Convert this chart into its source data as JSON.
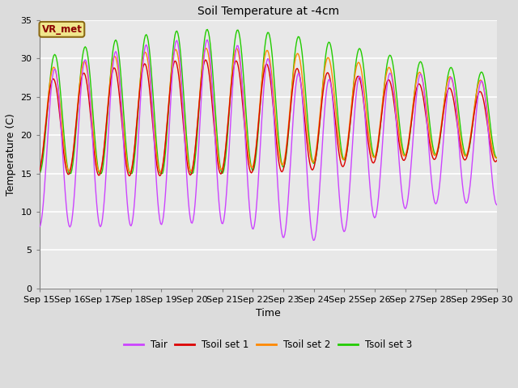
{
  "title": "Soil Temperature at -4cm",
  "xlabel": "Time",
  "ylabel": "Temperature (C)",
  "ylim": [
    0,
    35
  ],
  "xlim": [
    0,
    15
  ],
  "bg_color": "#dcdcdc",
  "plot_bg_color": "#e8e8e8",
  "annotation_text": "VR_met",
  "annotation_bg": "#f0e68c",
  "annotation_fg": "#8b0000",
  "annotation_border": "#8b6914",
  "tick_labels": [
    "Sep 15",
    "Sep 16",
    "Sep 17",
    "Sep 18",
    "Sep 19",
    "Sep 20",
    "Sep 21",
    "Sep 22",
    "Sep 23",
    "Sep 24",
    "Sep 25",
    "Sep 26",
    "Sep 27",
    "Sep 28",
    "Sep 29",
    "Sep 30"
  ],
  "legend_labels": [
    "Tair",
    "Tsoil set 1",
    "Tsoil set 2",
    "Tsoil set 3"
  ],
  "line_colors": [
    "#cc44ff",
    "#dd0000",
    "#ff8800",
    "#22cc00"
  ],
  "n_points": 480,
  "n_days": 15
}
